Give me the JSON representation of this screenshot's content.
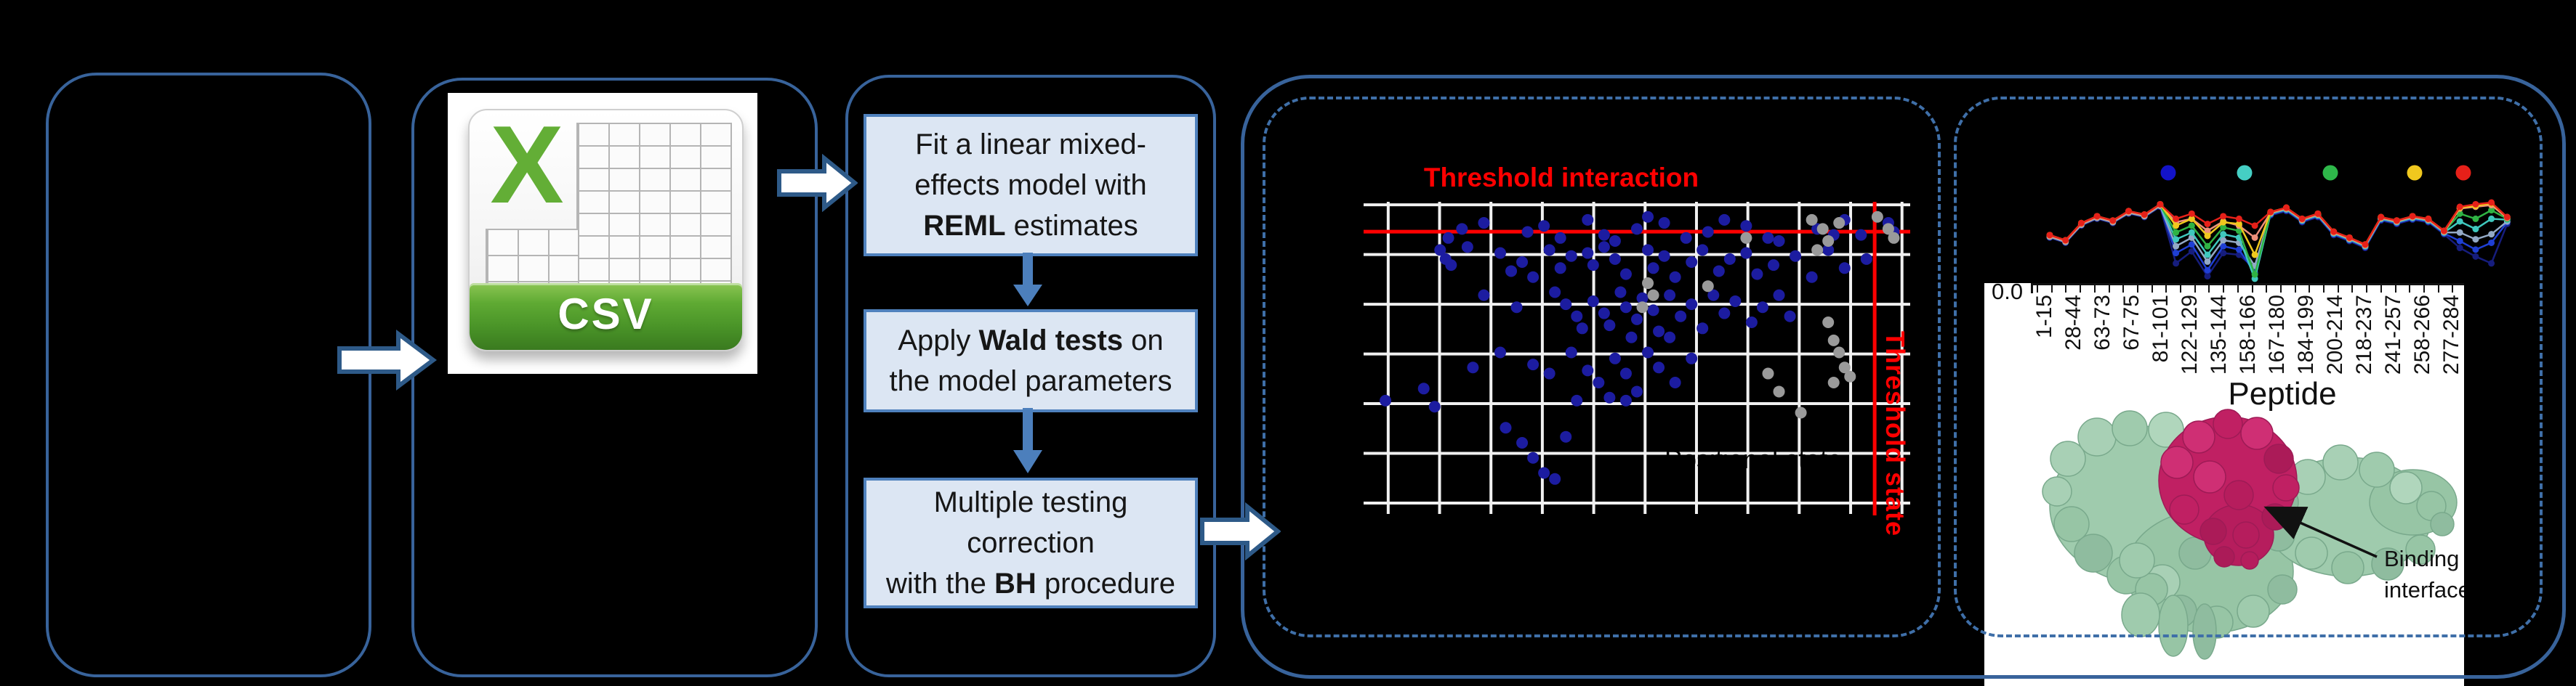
{
  "colors": {
    "background": "#000000",
    "panel_border": "#38639b",
    "dashed_border": "#3f6fa8",
    "block_arrow_fill": "#ffffff",
    "block_arrow_stroke": "#2e5a88",
    "flow_box_fill": "#dce6f3",
    "flow_box_border": "#4f81bd",
    "flow_arrow": "#4c7fbc",
    "threshold_red": "#ff0000",
    "grid_white": "#f0f0f0",
    "dot_blue": "#1c1ca0",
    "dot_gray": "#9a9a9a",
    "csv_green": "#5aa62f",
    "protein_green": "#9fcbad",
    "protein_crimson": "#c02063"
  },
  "csv_icon": {
    "x_letter": "X",
    "label": "CSV"
  },
  "flowchart": {
    "boxes": [
      {
        "lines": [
          [
            {
              "t": "Fit a linear mixed-",
              "b": false
            }
          ],
          [
            {
              "t": "effects model with",
              "b": false
            }
          ],
          [
            {
              "t": "REML",
              "b": true
            },
            {
              "t": " estimates",
              "b": false
            }
          ]
        ]
      },
      {
        "lines": [
          [
            {
              "t": "Apply ",
              "b": false
            },
            {
              "t": "Wald tests",
              "b": true
            },
            {
              "t": " on",
              "b": false
            }
          ],
          [
            {
              "t": "the model parameters",
              "b": false
            }
          ]
        ]
      },
      {
        "lines": [
          [
            {
              "t": "Multiple testing",
              "b": false
            }
          ],
          [
            {
              "t": "correction",
              "b": false
            }
          ],
          [
            {
              "t": "with the ",
              "b": false
            },
            {
              "t": "BH",
              "b": true
            },
            {
              "t": " procedure",
              "b": false
            }
          ]
        ]
      }
    ]
  },
  "chart_data": [
    {
      "type": "scatter",
      "title": "Threshold interaction",
      "rotated_right_label": "Threshold state",
      "occluded_label": "Positional state",
      "grid": {
        "v_lines_pct": [
          4.5,
          13.9,
          23.3,
          32.7,
          42.1,
          51.5,
          60.9,
          70.3,
          79.7,
          89.1,
          98.5
        ],
        "h_lines_pct": [
          1,
          17.5,
          34,
          50.5,
          67,
          83.5,
          100
        ]
      },
      "threshold_interaction_y_pct": 9.9,
      "threshold_state_x_pct": 93.5,
      "points_blue": [
        [
          15.5,
          12
        ],
        [
          18,
          9
        ],
        [
          22,
          7
        ],
        [
          30,
          10
        ],
        [
          33,
          8
        ],
        [
          36,
          12
        ],
        [
          41,
          6
        ],
        [
          44,
          11
        ],
        [
          46,
          13
        ],
        [
          50,
          9
        ],
        [
          52,
          5
        ],
        [
          55,
          7
        ],
        [
          59,
          12
        ],
        [
          63,
          10
        ],
        [
          66,
          6
        ],
        [
          70,
          8
        ],
        [
          74,
          12
        ],
        [
          76,
          13
        ],
        [
          83,
          9
        ],
        [
          86,
          11
        ],
        [
          88,
          6
        ],
        [
          91,
          11
        ],
        [
          96,
          7
        ],
        [
          97,
          10
        ],
        [
          14,
          16
        ],
        [
          15,
          19
        ],
        [
          16,
          21
        ],
        [
          19,
          15
        ],
        [
          25,
          17
        ],
        [
          27,
          23
        ],
        [
          29,
          20
        ],
        [
          31,
          25
        ],
        [
          34,
          16
        ],
        [
          36,
          22
        ],
        [
          38,
          18
        ],
        [
          41,
          17
        ],
        [
          42,
          21
        ],
        [
          44,
          15
        ],
        [
          46,
          19
        ],
        [
          48,
          24
        ],
        [
          52,
          16
        ],
        [
          53,
          22
        ],
        [
          55,
          18
        ],
        [
          57,
          25
        ],
        [
          60,
          20
        ],
        [
          62,
          16
        ],
        [
          65,
          23
        ],
        [
          67,
          19
        ],
        [
          70,
          17
        ],
        [
          72,
          24
        ],
        [
          75,
          21
        ],
        [
          79,
          18
        ],
        [
          82,
          25
        ],
        [
          85,
          16
        ],
        [
          88,
          22
        ],
        [
          92,
          19
        ],
        [
          22,
          31
        ],
        [
          28,
          35
        ],
        [
          35,
          30
        ],
        [
          37,
          34
        ],
        [
          39,
          38
        ],
        [
          40,
          42
        ],
        [
          42,
          33
        ],
        [
          44,
          37
        ],
        [
          45,
          41
        ],
        [
          47,
          30
        ],
        [
          48,
          35
        ],
        [
          50,
          39
        ],
        [
          51,
          32
        ],
        [
          53,
          36
        ],
        [
          54,
          43
        ],
        [
          56,
          31
        ],
        [
          58,
          38
        ],
        [
          60,
          34
        ],
        [
          62,
          42
        ],
        [
          64,
          31
        ],
        [
          66,
          37
        ],
        [
          68,
          33
        ],
        [
          71,
          40
        ],
        [
          73,
          35
        ],
        [
          76,
          31
        ],
        [
          78,
          38
        ],
        [
          56,
          45
        ],
        [
          49,
          45
        ],
        [
          25,
          50
        ],
        [
          31,
          54
        ],
        [
          38,
          50
        ],
        [
          41,
          56
        ],
        [
          43,
          60
        ],
        [
          46,
          52
        ],
        [
          48,
          57
        ],
        [
          50,
          63
        ],
        [
          52,
          50
        ],
        [
          54,
          55
        ],
        [
          57,
          60
        ],
        [
          60,
          52
        ],
        [
          45,
          65
        ],
        [
          34,
          57
        ],
        [
          20,
          55
        ],
        [
          11,
          62
        ],
        [
          4,
          66
        ],
        [
          13,
          68
        ],
        [
          26,
          75
        ],
        [
          29,
          80
        ],
        [
          31,
          85
        ],
        [
          33,
          90
        ],
        [
          37,
          78
        ],
        [
          39,
          66
        ],
        [
          48,
          66
        ],
        [
          35,
          92
        ]
      ],
      "points_gray": [
        [
          82,
          6
        ],
        [
          84,
          9
        ],
        [
          85,
          13
        ],
        [
          87,
          7
        ],
        [
          94,
          5
        ],
        [
          96,
          9
        ],
        [
          97,
          12
        ],
        [
          83,
          16
        ],
        [
          85,
          40
        ],
        [
          86,
          46
        ],
        [
          87,
          50
        ],
        [
          88,
          55
        ],
        [
          86,
          60
        ],
        [
          89,
          58
        ],
        [
          74,
          57
        ],
        [
          76,
          63
        ],
        [
          52,
          27
        ],
        [
          53,
          31
        ],
        [
          51,
          35
        ],
        [
          63,
          28
        ],
        [
          70,
          12
        ],
        [
          80,
          70
        ]
      ]
    },
    {
      "type": "line",
      "xlabel": "Peptide",
      "y_first_tick": "0.0",
      "categories": [
        "1-15",
        "28-44",
        "63-73",
        "67-75",
        "81-101",
        "122-129",
        "135-144",
        "158-166",
        "167-180",
        "184-199",
        "200-214",
        "218-237",
        "241-257",
        "258-266",
        "277-284"
      ],
      "legend_dots": [
        "#1313c8",
        "#45cfc4",
        "#2eb84a",
        "#f0c81e",
        "#e62019"
      ],
      "series": [
        {
          "name": "navy",
          "color": "#161d7d",
          "values": [
            0.52,
            0.58,
            0.38,
            0.3,
            0.35,
            0.24,
            0.28,
            0.16,
            0.82,
            0.68,
            0.97,
            0.7,
            0.72,
            0.88,
            0.26,
            0.21,
            0.34,
            0.28,
            0.49,
            0.56,
            0.64,
            0.32,
            0.36,
            0.31,
            0.34,
            0.48,
            0.64,
            0.74,
            0.82,
            0.36
          ]
        },
        {
          "name": "blue",
          "color": "#1f3fd4",
          "values": [
            0.51,
            0.57,
            0.37,
            0.29,
            0.34,
            0.23,
            0.27,
            0.15,
            0.7,
            0.6,
            0.9,
            0.62,
            0.66,
            0.93,
            0.25,
            0.2,
            0.33,
            0.27,
            0.48,
            0.55,
            0.63,
            0.31,
            0.35,
            0.3,
            0.33,
            0.47,
            0.56,
            0.66,
            0.58,
            0.34
          ]
        },
        {
          "name": "steel",
          "color": "#93a9c6",
          "values": [
            0.51,
            0.57,
            0.37,
            0.29,
            0.34,
            0.23,
            0.27,
            0.15,
            0.62,
            0.52,
            0.8,
            0.55,
            0.58,
            0.85,
            0.24,
            0.19,
            0.32,
            0.26,
            0.47,
            0.54,
            0.62,
            0.3,
            0.34,
            0.29,
            0.32,
            0.46,
            0.46,
            0.54,
            0.48,
            0.33
          ]
        },
        {
          "name": "cyan",
          "color": "#3fc8be",
          "values": [
            0.5,
            0.56,
            0.36,
            0.28,
            0.33,
            0.22,
            0.26,
            0.14,
            0.54,
            0.46,
            0.72,
            0.48,
            0.52,
            1.0,
            0.24,
            0.19,
            0.32,
            0.26,
            0.47,
            0.54,
            0.62,
            0.3,
            0.34,
            0.29,
            0.32,
            0.46,
            0.33,
            0.42,
            0.3,
            0.31
          ]
        },
        {
          "name": "green",
          "color": "#2fb344",
          "values": [
            0.5,
            0.56,
            0.36,
            0.28,
            0.33,
            0.22,
            0.26,
            0.14,
            0.46,
            0.38,
            0.62,
            0.4,
            0.44,
            0.95,
            0.23,
            0.18,
            0.31,
            0.25,
            0.46,
            0.53,
            0.61,
            0.29,
            0.33,
            0.28,
            0.31,
            0.45,
            0.24,
            0.3,
            0.2,
            0.3
          ]
        },
        {
          "name": "salmon",
          "color": "#ef8f7a",
          "values": [
            0.5,
            0.56,
            0.36,
            0.28,
            0.33,
            0.22,
            0.26,
            0.14,
            0.34,
            0.3,
            0.44,
            0.33,
            0.38,
            0.52,
            0.23,
            0.18,
            0.31,
            0.25,
            0.46,
            0.53,
            0.61,
            0.29,
            0.33,
            0.28,
            0.31,
            0.45,
            0.18,
            0.16,
            0.14,
            0.29
          ]
        },
        {
          "name": "yellow",
          "color": "#f0c81e",
          "values": [
            0.49,
            0.55,
            0.35,
            0.27,
            0.32,
            0.21,
            0.25,
            0.13,
            0.38,
            0.3,
            0.5,
            0.34,
            0.36,
            0.72,
            0.22,
            0.17,
            0.3,
            0.24,
            0.45,
            0.52,
            0.6,
            0.28,
            0.32,
            0.27,
            0.3,
            0.44,
            0.17,
            0.15,
            0.12,
            0.28
          ]
        },
        {
          "name": "red",
          "color": "#e62019",
          "values": [
            0.49,
            0.55,
            0.35,
            0.27,
            0.32,
            0.21,
            0.25,
            0.13,
            0.3,
            0.24,
            0.36,
            0.27,
            0.3,
            0.38,
            0.22,
            0.17,
            0.3,
            0.24,
            0.45,
            0.52,
            0.6,
            0.28,
            0.32,
            0.27,
            0.3,
            0.44,
            0.16,
            0.13,
            0.11,
            0.28
          ]
        }
      ]
    }
  ],
  "protein": {
    "binding_label_lines": [
      "Binding",
      "interface"
    ]
  }
}
